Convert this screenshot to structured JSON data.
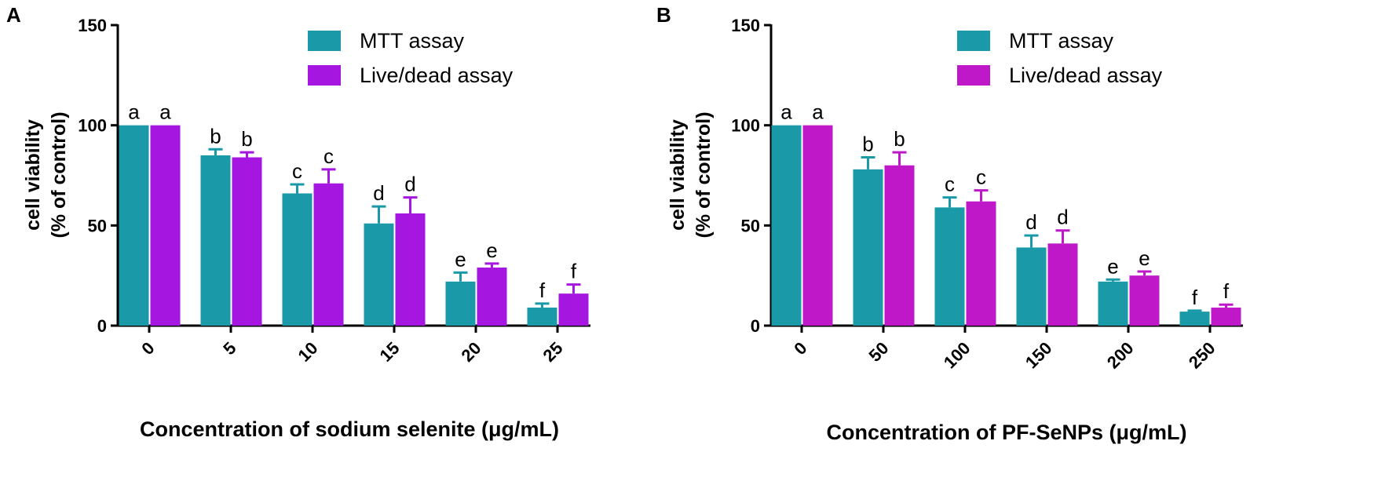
{
  "colors": {
    "mtt": "#1a9aa8",
    "livedead": "#a516e0",
    "livedead_b": "#bf18c9",
    "axis": "#000000"
  },
  "chart_data": [
    {
      "panel": "A",
      "type": "bar",
      "xlabel": "Concentration of sodium selenite (μg/mL)",
      "ylabel_line1": "cell viability",
      "ylabel_line2": "(% of control)",
      "ylim": [
        0,
        150
      ],
      "yticks": [
        "0",
        "50",
        "100",
        "150"
      ],
      "categories": [
        "0",
        "5",
        "10",
        "15",
        "20",
        "25"
      ],
      "series": [
        {
          "name": "MTT assay",
          "color": "#1a9aa8",
          "values": [
            100,
            85,
            66,
            51,
            22,
            9
          ],
          "errors": [
            0,
            3,
            4.5,
            8.5,
            4.5,
            2
          ],
          "labels": [
            "a",
            "b",
            "c",
            "d",
            "e",
            "f"
          ]
        },
        {
          "name": "Live/dead assay",
          "color": "#a516e0",
          "values": [
            100,
            84,
            71,
            56,
            29,
            16
          ],
          "errors": [
            0,
            2.5,
            7,
            8,
            2,
            4.5
          ],
          "labels": [
            "a",
            "b",
            "c",
            "d",
            "e",
            "f"
          ]
        }
      ]
    },
    {
      "panel": "B",
      "type": "bar",
      "xlabel": "Concentration of PF-SeNPs (μg/mL)",
      "ylabel_line1": "cell viability",
      "ylabel_line2": "(% of control)",
      "ylim": [
        0,
        150
      ],
      "yticks": [
        "0",
        "50",
        "100",
        "150"
      ],
      "categories": [
        "0",
        "50",
        "100",
        "150",
        "200",
        "250"
      ],
      "series": [
        {
          "name": "MTT assay",
          "color": "#1a9aa8",
          "values": [
            100,
            78,
            59,
            39,
            22,
            7
          ],
          "errors": [
            0,
            6,
            5,
            6,
            1,
            0.5
          ],
          "labels": [
            "a",
            "b",
            "c",
            "d",
            "e",
            "f"
          ]
        },
        {
          "name": "Live/dead assay",
          "color": "#bf18c9",
          "values": [
            100,
            80,
            62,
            41,
            25,
            9
          ],
          "errors": [
            0,
            6.5,
            5.5,
            6.5,
            2,
            1.5
          ],
          "labels": [
            "a",
            "b",
            "c",
            "d",
            "e",
            "f"
          ]
        }
      ]
    }
  ]
}
